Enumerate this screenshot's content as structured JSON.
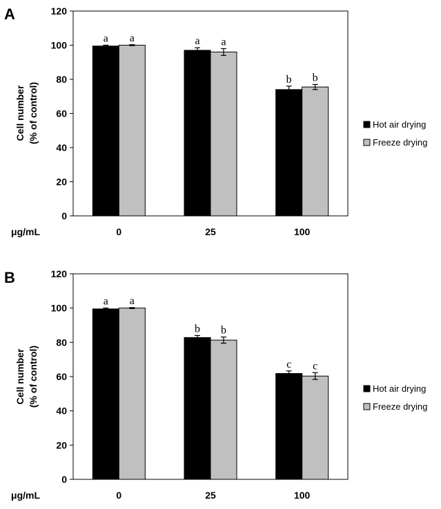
{
  "chart_data": [
    {
      "panel": "A",
      "type": "bar",
      "categories": [
        "0",
        "25",
        "100"
      ],
      "unit_label": "μg/mL",
      "ylabel_line1": "Cell number",
      "ylabel_line2": "(% of control)",
      "ylim": [
        0,
        120
      ],
      "yticks": [
        0,
        20,
        40,
        60,
        80,
        100,
        120
      ],
      "series": [
        {
          "name": "Hot air drying",
          "color": "#000000",
          "values": [
            99.5,
            97.0,
            74.0
          ],
          "errors": [
            0.5,
            1.5,
            2.0
          ],
          "sig": [
            "a",
            "a",
            "b"
          ]
        },
        {
          "name": "Freeze drying",
          "color": "#c0c0c0",
          "values": [
            100.0,
            96.0,
            75.5
          ],
          "errors": [
            0.3,
            2.0,
            1.5
          ],
          "sig": [
            "a",
            "a",
            "b"
          ]
        }
      ],
      "legend_position": "right"
    },
    {
      "panel": "B",
      "type": "bar",
      "categories": [
        "0",
        "25",
        "100"
      ],
      "unit_label": "μg/mL",
      "ylabel_line1": "Cell number",
      "ylabel_line2": "(% of control)",
      "ylim": [
        0,
        120
      ],
      "yticks": [
        0,
        20,
        40,
        60,
        80,
        100,
        120
      ],
      "series": [
        {
          "name": "Hot air drying",
          "color": "#000000",
          "values": [
            99.5,
            82.8,
            61.8
          ],
          "errors": [
            0.5,
            1.2,
            1.5
          ],
          "sig": [
            "a",
            "b",
            "c"
          ]
        },
        {
          "name": "Freeze drying",
          "color": "#c0c0c0",
          "values": [
            100.0,
            81.3,
            60.3
          ],
          "errors": [
            0.3,
            1.8,
            2.0
          ],
          "sig": [
            "a",
            "b",
            "c"
          ]
        }
      ],
      "legend_position": "right"
    }
  ]
}
